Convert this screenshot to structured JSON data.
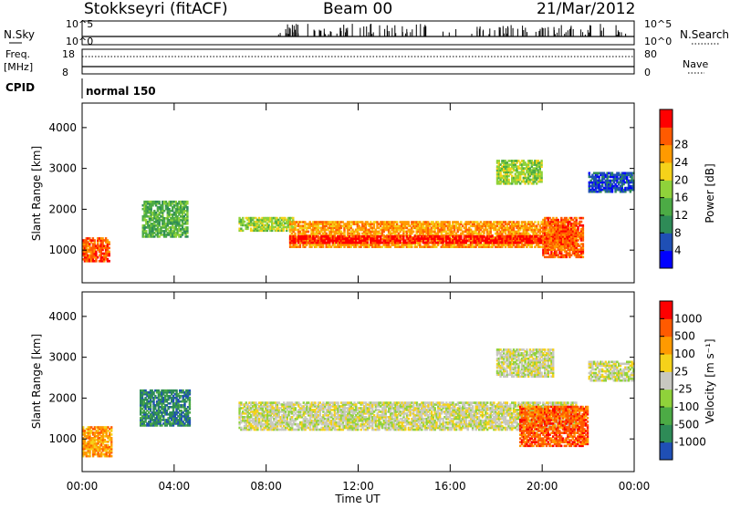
{
  "header": {
    "station": "Stokkseyri (fitACF)",
    "beam": "Beam 00",
    "date": "21/Mar/2012"
  },
  "labels": {
    "nsky": "N.Sky",
    "nsearch": "N.Search",
    "freq": "Freq.",
    "mhz": "[MHz]",
    "nave": "Nave",
    "cpid": "CPID",
    "cpid_value": "normal 150",
    "nsky_top": "10^5",
    "nsky_bottom": "10^0",
    "freq_top": "18",
    "freq_bottom": "8",
    "nave_top": "80",
    "nave_bottom": "0"
  },
  "chart_data": [
    {
      "type": "heatmap",
      "name": "power",
      "ylabel": "Slant Range [km]",
      "xlabel": "Time UT",
      "ylim": [
        200,
        4600
      ],
      "yticks": [
        "1000",
        "2000",
        "3000",
        "4000"
      ],
      "xticks": [
        "00:00",
        "04:00",
        "08:00",
        "12:00",
        "16:00",
        "20:00",
        "00:00"
      ],
      "colorbar": {
        "label": "Power [dB]",
        "ticks": [
          "4",
          "8",
          "12",
          "16",
          "20",
          "24",
          "28"
        ],
        "colors": [
          "#0000ff",
          "#1f4fb5",
          "#2e8b57",
          "#4cab45",
          "#8fd23a",
          "#f5d21a",
          "#ff9a00",
          "#ff5a00",
          "#ff0000"
        ]
      },
      "regions": [
        {
          "t0": 0.0,
          "t1": 1.2,
          "r0": 700,
          "r1": 1300,
          "level": 7
        },
        {
          "t0": 2.6,
          "t1": 4.6,
          "r0": 1300,
          "r1": 2200,
          "level": 3
        },
        {
          "t0": 6.8,
          "t1": 9.2,
          "r0": 1450,
          "r1": 1800,
          "level": 4
        },
        {
          "t0": 9.0,
          "t1": 21.5,
          "r0": 1050,
          "r1": 1700,
          "level": 6
        },
        {
          "t0": 9.0,
          "t1": 21.5,
          "r0": 1150,
          "r1": 1350,
          "level": 8
        },
        {
          "t0": 18.0,
          "t1": 20.0,
          "r0": 2600,
          "r1": 3200,
          "level": 4
        },
        {
          "t0": 20.0,
          "t1": 21.8,
          "r0": 800,
          "r1": 1800,
          "level": 7
        },
        {
          "t0": 22.0,
          "t1": 24.0,
          "r0": 2400,
          "r1": 2900,
          "level": 1
        }
      ]
    },
    {
      "type": "heatmap",
      "name": "velocity",
      "ylabel": "Slant Range [km]",
      "xlabel": "Time UT",
      "ylim": [
        200,
        4600
      ],
      "yticks": [
        "1000",
        "2000",
        "3000",
        "4000"
      ],
      "xticks": [
        "00:00",
        "04:00",
        "08:00",
        "12:00",
        "16:00",
        "20:00",
        "00:00"
      ],
      "colorbar": {
        "label": "Velocity [m s⁻¹]",
        "ticks": [
          "1000",
          "500",
          "100",
          "25",
          "-25",
          "-100",
          "-500",
          "-1000"
        ],
        "colors": [
          "#1f4fb5",
          "#2e8b57",
          "#4cab45",
          "#8fd23a",
          "#c8c8c0",
          "#f5d21a",
          "#ff9a00",
          "#ff5a00",
          "#ff0000"
        ]
      },
      "regions": [
        {
          "t0": 0.0,
          "t1": 1.3,
          "r0": 550,
          "r1": 1300,
          "level": 6
        },
        {
          "t0": 2.5,
          "t1": 4.7,
          "r0": 1300,
          "r1": 2200,
          "level": 1
        },
        {
          "t0": 6.8,
          "t1": 21.5,
          "r0": 1200,
          "r1": 1900,
          "level": 4
        },
        {
          "t0": 19.0,
          "t1": 22.0,
          "r0": 800,
          "r1": 1800,
          "level": 7
        },
        {
          "t0": 18.0,
          "t1": 20.5,
          "r0": 2500,
          "r1": 3200,
          "level": 4
        },
        {
          "t0": 22.0,
          "t1": 24.0,
          "r0": 2400,
          "r1": 2900,
          "level": 4
        }
      ]
    }
  ]
}
